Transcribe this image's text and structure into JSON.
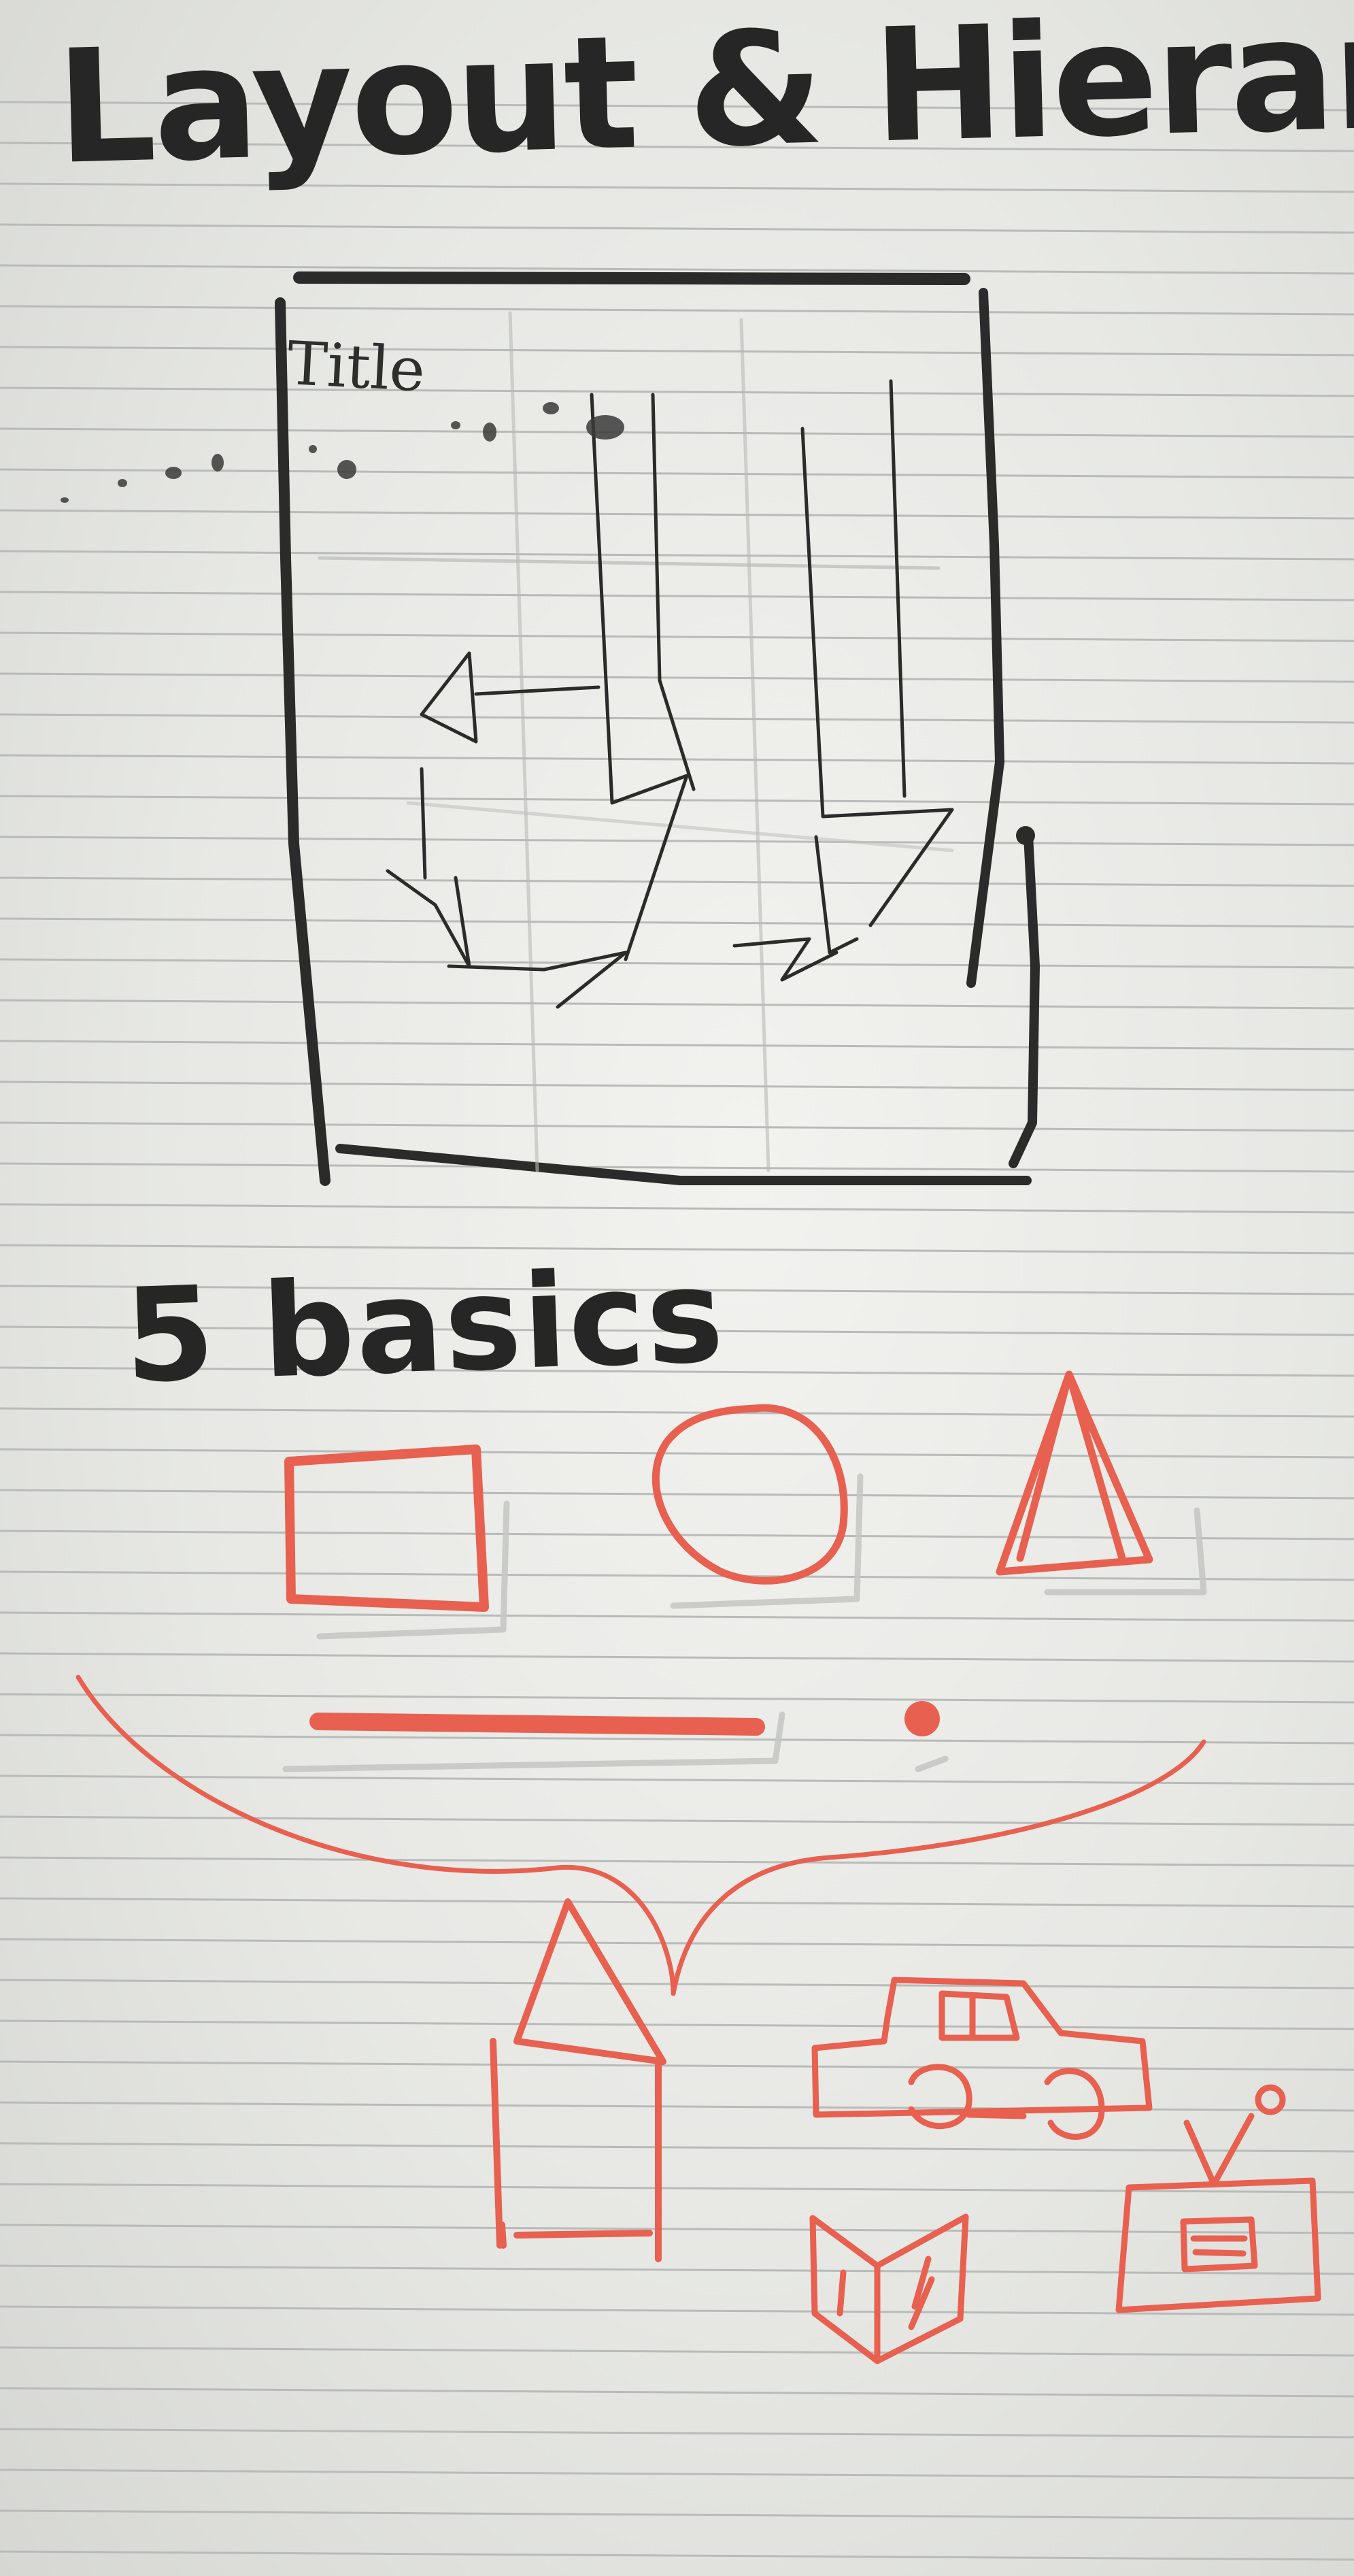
{
  "notebook": {
    "heading": "Layout & Hierarchy",
    "wireframe_label": "Title",
    "section_heading": "5 basics"
  },
  "colors": {
    "paper": "#eeeeeb",
    "rule": "#b8bbb9",
    "ink_black": "#262626",
    "ink_red": "#e8604f",
    "shadow": "#c9cac6"
  },
  "sketches": {
    "wireframe": "wireframe-sketch",
    "basic_shapes": [
      "square",
      "circle",
      "triangle",
      "line",
      "dot"
    ],
    "compositions": [
      "house",
      "car",
      "book",
      "television"
    ]
  }
}
